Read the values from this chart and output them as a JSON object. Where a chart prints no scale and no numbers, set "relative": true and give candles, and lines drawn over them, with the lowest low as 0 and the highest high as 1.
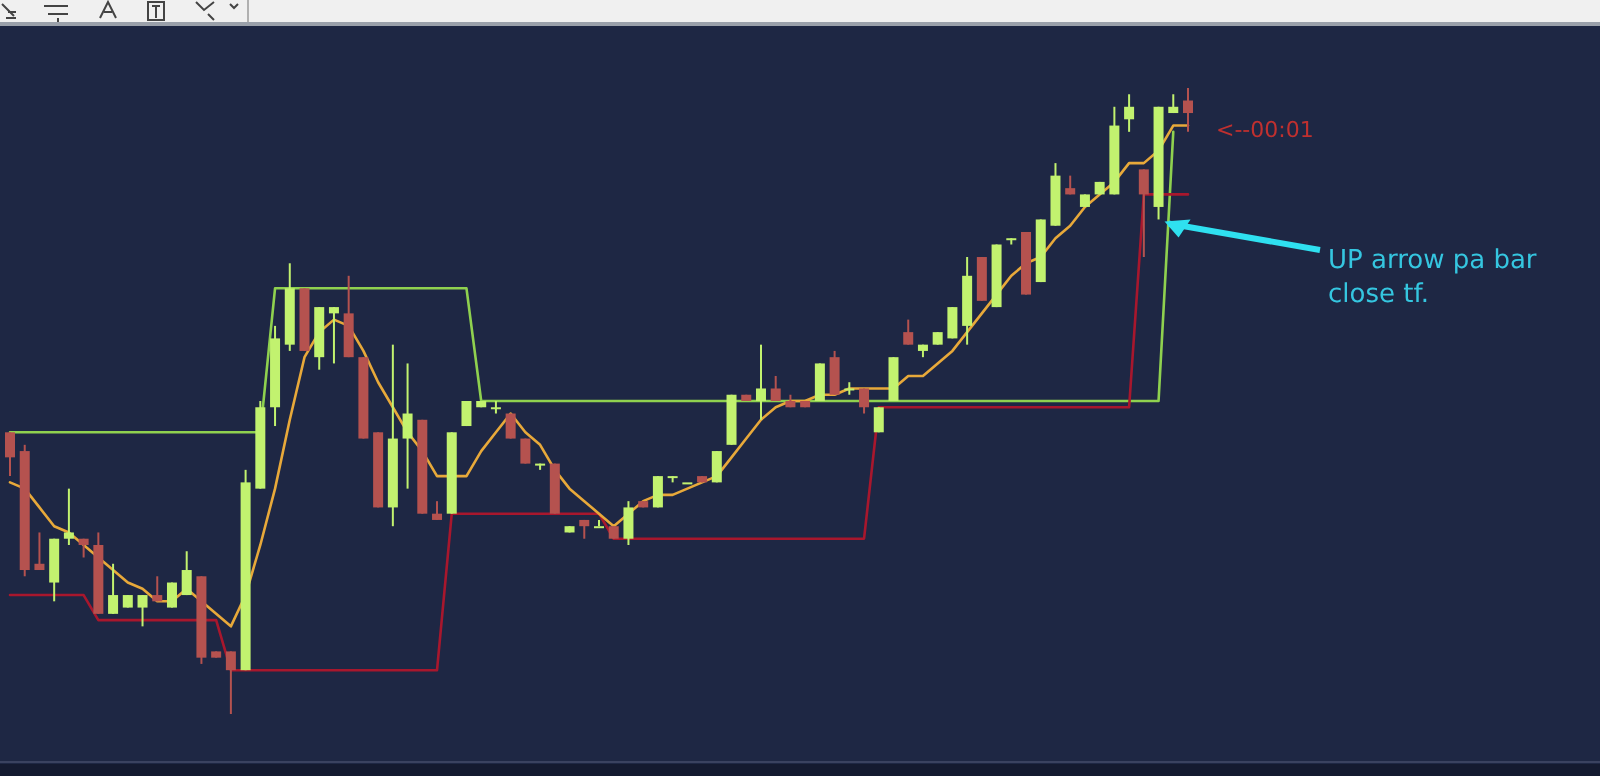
{
  "chart_data": {
    "type": "candlestick",
    "relative": true,
    "categories": [
      null,
      null,
      null,
      null,
      null,
      null,
      null,
      null,
      null,
      null,
      null,
      null,
      null,
      null,
      null,
      null,
      null,
      null,
      null,
      null,
      null,
      null,
      null,
      null,
      null,
      null,
      null,
      null,
      null,
      null,
      null,
      null,
      null,
      null,
      null,
      null,
      null,
      null,
      null,
      null,
      null,
      null,
      null,
      null,
      null,
      null,
      null,
      null,
      null,
      null,
      null,
      null,
      null,
      null,
      null,
      null,
      null,
      null,
      null,
      null,
      null,
      null,
      null,
      null,
      null,
      null,
      null,
      null,
      null,
      null,
      null,
      null,
      null,
      null,
      null,
      null,
      null,
      null,
      null,
      null,
      null
    ],
    "ohlc": [
      [
        0.45,
        0.45,
        0.38,
        0.41
      ],
      [
        0.42,
        0.43,
        0.22,
        0.23
      ],
      [
        0.24,
        0.29,
        0.23,
        0.23
      ],
      [
        0.21,
        0.28,
        0.18,
        0.28
      ],
      [
        0.28,
        0.36,
        0.27,
        0.29
      ],
      [
        0.28,
        0.28,
        0.25,
        0.27
      ],
      [
        0.27,
        0.29,
        0.16,
        0.16
      ],
      [
        0.16,
        0.24,
        0.16,
        0.19
      ],
      [
        0.17,
        0.19,
        0.17,
        0.19
      ],
      [
        0.17,
        0.19,
        0.14,
        0.19
      ],
      [
        0.19,
        0.22,
        0.18,
        0.18
      ],
      [
        0.17,
        0.21,
        0.17,
        0.21
      ],
      [
        0.19,
        0.26,
        0.19,
        0.23
      ],
      [
        0.22,
        0.22,
        0.08,
        0.09
      ],
      [
        0.1,
        0.1,
        0.09,
        0.09
      ],
      [
        0.1,
        0.1,
        0.0,
        0.07
      ],
      [
        0.07,
        0.39,
        0.07,
        0.37
      ],
      [
        0.36,
        0.5,
        0.36,
        0.49
      ],
      [
        0.49,
        0.62,
        0.46,
        0.6
      ],
      [
        0.59,
        0.72,
        0.58,
        0.68
      ],
      [
        0.68,
        0.68,
        0.58,
        0.58
      ],
      [
        0.57,
        0.65,
        0.55,
        0.65
      ],
      [
        0.64,
        0.65,
        0.56,
        0.65
      ],
      [
        0.64,
        0.7,
        0.57,
        0.57
      ],
      [
        0.57,
        0.57,
        0.44,
        0.44
      ],
      [
        0.45,
        0.45,
        0.33,
        0.33
      ],
      [
        0.33,
        0.59,
        0.3,
        0.44
      ],
      [
        0.44,
        0.56,
        0.36,
        0.48
      ],
      [
        0.47,
        0.47,
        0.32,
        0.32
      ],
      [
        0.32,
        0.34,
        0.31,
        0.31
      ],
      [
        0.32,
        0.45,
        0.32,
        0.45
      ],
      [
        0.46,
        0.5,
        0.46,
        0.5
      ],
      [
        0.49,
        0.5,
        0.49,
        0.5
      ],
      [
        0.49,
        0.5,
        0.48,
        0.49
      ],
      [
        0.48,
        0.48,
        0.44,
        0.44
      ],
      [
        0.44,
        0.44,
        0.4,
        0.4
      ],
      [
        0.4,
        0.4,
        0.39,
        0.4
      ],
      [
        0.4,
        0.4,
        0.32,
        0.32
      ],
      [
        0.29,
        0.3,
        0.29,
        0.3
      ],
      [
        0.31,
        0.31,
        0.28,
        0.3
      ],
      [
        0.3,
        0.31,
        0.3,
        0.3
      ],
      [
        0.3,
        0.3,
        0.28,
        0.28
      ],
      [
        0.28,
        0.34,
        0.27,
        0.33
      ],
      [
        0.34,
        0.34,
        0.33,
        0.33
      ],
      [
        0.33,
        0.38,
        0.33,
        0.38
      ],
      [
        0.38,
        0.38,
        0.37,
        0.38
      ],
      [
        0.37,
        0.37,
        0.37,
        0.37
      ],
      [
        0.38,
        0.38,
        0.37,
        0.37
      ],
      [
        0.37,
        0.42,
        0.37,
        0.42
      ],
      [
        0.43,
        0.51,
        0.43,
        0.51
      ],
      [
        0.51,
        0.51,
        0.5,
        0.5
      ],
      [
        0.5,
        0.59,
        0.47,
        0.52
      ],
      [
        0.52,
        0.54,
        0.5,
        0.5
      ],
      [
        0.5,
        0.51,
        0.49,
        0.49
      ],
      [
        0.5,
        0.5,
        0.49,
        0.49
      ],
      [
        0.5,
        0.56,
        0.5,
        0.56
      ],
      [
        0.57,
        0.58,
        0.51,
        0.51
      ],
      [
        0.52,
        0.53,
        0.51,
        0.52
      ],
      [
        0.52,
        0.52,
        0.48,
        0.49
      ],
      [
        0.45,
        0.49,
        0.45,
        0.49
      ],
      [
        0.5,
        0.57,
        0.5,
        0.57
      ],
      [
        0.61,
        0.63,
        0.59,
        0.59
      ],
      [
        0.58,
        0.59,
        0.57,
        0.59
      ],
      [
        0.59,
        0.61,
        0.59,
        0.61
      ],
      [
        0.6,
        0.65,
        0.6,
        0.65
      ],
      [
        0.62,
        0.73,
        0.59,
        0.7
      ],
      [
        0.73,
        0.73,
        0.66,
        0.66
      ],
      [
        0.65,
        0.75,
        0.65,
        0.75
      ],
      [
        0.76,
        0.76,
        0.75,
        0.76
      ],
      [
        0.77,
        0.77,
        0.67,
        0.67
      ],
      [
        0.69,
        0.79,
        0.69,
        0.79
      ],
      [
        0.78,
        0.88,
        0.78,
        0.86
      ],
      [
        0.84,
        0.86,
        0.83,
        0.83
      ],
      [
        0.81,
        0.83,
        0.81,
        0.83
      ],
      [
        0.83,
        0.85,
        0.83,
        0.85
      ],
      [
        0.83,
        0.97,
        0.83,
        0.94
      ],
      [
        0.95,
        0.99,
        0.93,
        0.97
      ],
      [
        0.87,
        0.87,
        0.73,
        0.83
      ],
      [
        0.81,
        0.97,
        0.79,
        0.97
      ],
      [
        0.96,
        0.99,
        0.96,
        0.97
      ],
      [
        0.98,
        1.0,
        0.93,
        0.96
      ]
    ],
    "colors": [
      "#b5524f",
      "#b5524f",
      "#b5524f",
      "#c2f26f",
      "#c2f26f",
      "#b5524f",
      "#b5524f",
      "#c2f26f",
      "#c2f26f",
      "#c2f26f",
      "#b5524f",
      "#c2f26f",
      "#c2f26f",
      "#b5524f",
      "#b5524f",
      "#b5524f",
      "#c2f26f",
      "#c2f26f",
      "#c2f26f",
      "#c2f26f",
      "#b5524f",
      "#c2f26f",
      "#c2f26f",
      "#b5524f",
      "#b5524f",
      "#b5524f",
      "#c2f26f",
      "#c2f26f",
      "#b5524f",
      "#b5524f",
      "#c2f26f",
      "#c2f26f",
      "#c2f26f",
      "#c2f26f",
      "#b5524f",
      "#b5524f",
      "#c2f26f",
      "#b5524f",
      "#c2f26f",
      "#b5524f",
      "#c2f26f",
      "#b5524f",
      "#c2f26f",
      "#b5524f",
      "#c2f26f",
      "#c2f26f",
      "#c2f26f",
      "#b5524f",
      "#c2f26f",
      "#c2f26f",
      "#b5524f",
      "#c2f26f",
      "#b5524f",
      "#b5524f",
      "#b5524f",
      "#c2f26f",
      "#b5524f",
      "#c2f26f",
      "#b5524f",
      "#c2f26f",
      "#c2f26f",
      "#b5524f",
      "#c2f26f",
      "#c2f26f",
      "#c2f26f",
      "#c2f26f",
      "#b5524f",
      "#c2f26f",
      "#c2f26f",
      "#b5524f",
      "#c2f26f",
      "#c2f26f",
      "#b5524f",
      "#c2f26f",
      "#c2f26f",
      "#c2f26f",
      "#c2f26f",
      "#b5524f",
      "#c2f26f",
      "#c2f26f",
      "#b5524f"
    ],
    "series": [
      {
        "type": "line",
        "color": "#8fd14f",
        "values": [
          0.45,
          0.45,
          0.45,
          0.45,
          0.45,
          0.45,
          0.45,
          0.45,
          0.45,
          0.45,
          0.45,
          0.45,
          0.45,
          0.45,
          0.45,
          0.45,
          0.45,
          0.45,
          0.68,
          0.68,
          0.68,
          0.68,
          0.68,
          0.68,
          0.68,
          0.68,
          0.68,
          0.68,
          0.68,
          0.68,
          0.68,
          0.68,
          0.5,
          0.5,
          0.5,
          0.5,
          0.5,
          0.5,
          0.5,
          0.5,
          0.5,
          0.5,
          0.5,
          0.5,
          0.5,
          0.5,
          0.5,
          0.5,
          0.5,
          0.5,
          0.5,
          0.5,
          0.5,
          0.5,
          0.5,
          0.5,
          0.5,
          0.5,
          0.5,
          0.5,
          0.5,
          0.5,
          0.5,
          0.5,
          0.5,
          0.5,
          0.5,
          0.5,
          0.5,
          0.5,
          0.5,
          0.5,
          0.5,
          0.5,
          0.5,
          0.5,
          0.5,
          0.5,
          0.5,
          0.93,
          null
        ]
      },
      {
        "type": "line",
        "color": "#a8172d",
        "values": [
          0.19,
          0.19,
          0.19,
          0.19,
          0.19,
          0.19,
          0.15,
          0.15,
          0.15,
          0.15,
          0.15,
          0.15,
          0.15,
          0.15,
          0.15,
          0.07,
          0.07,
          0.07,
          0.07,
          0.07,
          0.07,
          0.07,
          0.07,
          0.07,
          0.07,
          0.07,
          0.07,
          0.07,
          0.07,
          0.07,
          0.32,
          0.32,
          0.32,
          0.32,
          0.32,
          0.32,
          0.32,
          0.32,
          0.32,
          0.32,
          0.32,
          0.28,
          0.28,
          0.28,
          0.28,
          0.28,
          0.28,
          0.28,
          0.28,
          0.28,
          0.28,
          0.28,
          0.28,
          0.28,
          0.28,
          0.28,
          0.28,
          0.28,
          0.28,
          0.49,
          0.49,
          0.49,
          0.49,
          0.49,
          0.49,
          0.49,
          0.49,
          0.49,
          0.49,
          0.49,
          0.49,
          0.49,
          0.49,
          0.49,
          0.49,
          0.49,
          0.49,
          0.83,
          0.83,
          0.83,
          0.83
        ]
      },
      {
        "type": "line",
        "color": "#e8a93a",
        "values": [
          0.37,
          0.36,
          0.33,
          0.3,
          0.29,
          0.27,
          0.25,
          0.23,
          0.21,
          0.2,
          0.18,
          0.18,
          0.2,
          0.18,
          0.16,
          0.14,
          0.19,
          0.27,
          0.36,
          0.47,
          0.57,
          0.61,
          0.63,
          0.62,
          0.58,
          0.53,
          0.49,
          0.45,
          0.42,
          0.38,
          0.38,
          0.38,
          0.42,
          0.45,
          0.48,
          0.45,
          0.43,
          0.39,
          0.36,
          0.34,
          0.32,
          0.3,
          0.32,
          0.34,
          0.35,
          0.35,
          0.36,
          0.37,
          0.38,
          0.41,
          0.44,
          0.47,
          0.49,
          0.5,
          0.5,
          0.51,
          0.51,
          0.52,
          0.52,
          0.52,
          0.52,
          0.54,
          0.54,
          0.56,
          0.58,
          0.61,
          0.64,
          0.67,
          0.7,
          0.72,
          0.73,
          0.76,
          0.78,
          0.81,
          0.83,
          0.85,
          0.88,
          0.88,
          0.9,
          0.94,
          0.94
        ]
      }
    ],
    "annotations": [
      "<--00:01",
      "UP arrow pa bar close tf."
    ]
  }
}
